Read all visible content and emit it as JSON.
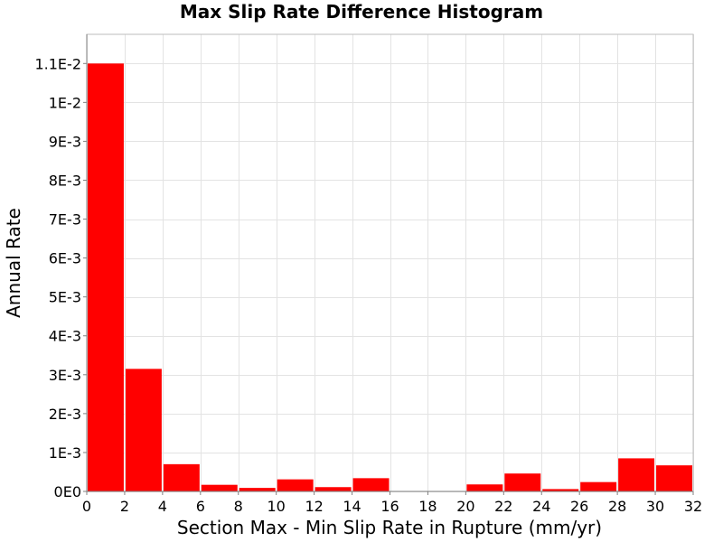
{
  "chart_data": {
    "type": "bar",
    "title": "Max Slip Rate Difference Histogram",
    "xlabel": "Section Max - Min Slip Rate in Rupture (mm/yr)",
    "ylabel": "Annual Rate",
    "xlim": [
      0,
      32
    ],
    "ylim": [
      0,
      0.01175
    ],
    "bin_width": 2,
    "x_ticks": [
      0,
      2,
      4,
      6,
      8,
      10,
      12,
      14,
      16,
      18,
      20,
      22,
      24,
      26,
      28,
      30,
      32
    ],
    "x_tick_labels": [
      "0",
      "2",
      "4",
      "6",
      "8",
      "10",
      "12",
      "14",
      "16",
      "18",
      "20",
      "22",
      "24",
      "26",
      "28",
      "30",
      "32"
    ],
    "y_ticks": [
      0,
      0.001,
      0.002,
      0.003,
      0.004,
      0.005,
      0.006,
      0.007,
      0.008,
      0.009,
      0.01,
      0.011
    ],
    "y_tick_labels": [
      "0E0",
      "1E-3",
      "2E-3",
      "3E-3",
      "4E-3",
      "5E-3",
      "6E-3",
      "7E-3",
      "8E-3",
      "9E-3",
      "1E-2",
      "1.1E-2"
    ],
    "bins": [
      {
        "x_start": 0,
        "x_end": 2,
        "value": 0.011
      },
      {
        "x_start": 2,
        "x_end": 4,
        "value": 0.00315
      },
      {
        "x_start": 4,
        "x_end": 6,
        "value": 0.0007
      },
      {
        "x_start": 6,
        "x_end": 8,
        "value": 0.00017
      },
      {
        "x_start": 8,
        "x_end": 10,
        "value": 9e-05
      },
      {
        "x_start": 10,
        "x_end": 12,
        "value": 0.00031
      },
      {
        "x_start": 12,
        "x_end": 14,
        "value": 0.00011
      },
      {
        "x_start": 14,
        "x_end": 16,
        "value": 0.00034
      },
      {
        "x_start": 16,
        "x_end": 18,
        "value": 0.0
      },
      {
        "x_start": 18,
        "x_end": 20,
        "value": 0.0
      },
      {
        "x_start": 20,
        "x_end": 22,
        "value": 0.00018
      },
      {
        "x_start": 22,
        "x_end": 24,
        "value": 0.00046
      },
      {
        "x_start": 24,
        "x_end": 26,
        "value": 6e-05
      },
      {
        "x_start": 26,
        "x_end": 28,
        "value": 0.00024
      },
      {
        "x_start": 28,
        "x_end": 30,
        "value": 0.00085
      },
      {
        "x_start": 30,
        "x_end": 32,
        "value": 0.00067
      }
    ],
    "bar_color": "#ff0000",
    "grid": true,
    "legend": "none"
  }
}
